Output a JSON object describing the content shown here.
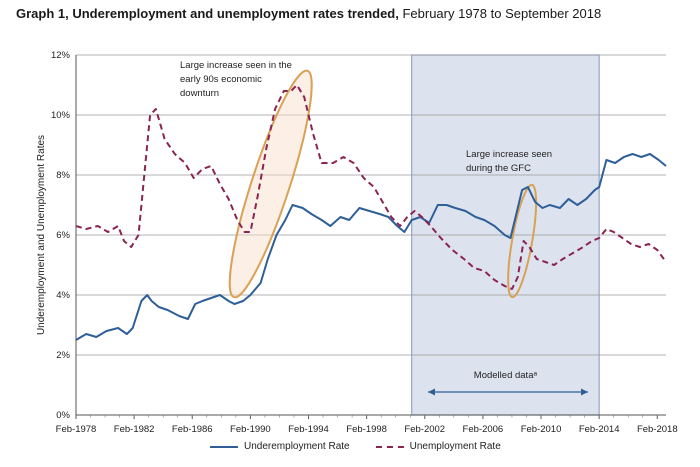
{
  "title_bold": "Graph 1, Underemployment and unemployment rates trended,",
  "title_rest": " February 1978 to September 2018",
  "chart_data": {
    "type": "line",
    "xlabel": "",
    "ylabel": "Underemployment and Unemployment Rates",
    "ylim": [
      0,
      12
    ],
    "yticks": [
      "0%",
      "2%",
      "4%",
      "6%",
      "8%",
      "10%",
      "12%"
    ],
    "xticks": [
      "Feb-1978",
      "Feb-1982",
      "Feb-1986",
      "Feb-1990",
      "Feb-1994",
      "Feb-1998",
      "Feb-2002",
      "Feb-2006",
      "Feb-2010",
      "Feb-2014",
      "Feb-2018"
    ],
    "xrange": [
      1978.1,
      2018.7
    ],
    "grid": "horizontal",
    "legend_position": "bottom",
    "shaded_region": {
      "from": 2001.2,
      "to": 2014.1,
      "color": "#dde3ee",
      "label": "Modelled dataᵃ"
    },
    "annotations": [
      {
        "text_lines": [
          "Large increase seen in the",
          "early 90s economic",
          "downturn"
        ]
      },
      {
        "text_lines": [
          "Large increase seen",
          "during the GFC"
        ]
      }
    ],
    "series": [
      {
        "name": "Underemployment Rate",
        "color": "#2e5f98",
        "style": "solid",
        "x": [
          1978.1,
          1978.8,
          1979.5,
          1980.2,
          1981.0,
          1981.6,
          1982.0,
          1982.6,
          1983.0,
          1983.3,
          1983.8,
          1984.4,
          1985.2,
          1985.8,
          1986.3,
          1986.8,
          1987.4,
          1988.0,
          1988.6,
          1989.0,
          1989.6,
          1990.1,
          1990.8,
          1991.3,
          1991.9,
          1992.5,
          1993.0,
          1993.7,
          1994.3,
          1995.0,
          1995.6,
          1996.3,
          1996.9,
          1997.6,
          1998.3,
          1999.0,
          1999.6,
          2000.2,
          2000.7,
          2001.2,
          2001.8,
          2002.4,
          2003.0,
          2003.6,
          2004.2,
          2004.9,
          2005.6,
          2006.2,
          2006.9,
          2007.6,
          2008.0,
          2008.4,
          2008.8,
          2009.2,
          2009.7,
          2010.2,
          2010.7,
          2011.4,
          2012.0,
          2012.6,
          2013.2,
          2013.8,
          2014.1,
          2014.6,
          2015.2,
          2015.8,
          2016.4,
          2017.0,
          2017.6,
          2018.2,
          2018.7
        ],
        "y": [
          2.5,
          2.7,
          2.6,
          2.8,
          2.9,
          2.7,
          2.9,
          3.8,
          4.0,
          3.8,
          3.6,
          3.5,
          3.3,
          3.2,
          3.7,
          3.8,
          3.9,
          4.0,
          3.8,
          3.7,
          3.8,
          4.0,
          4.4,
          5.2,
          6.0,
          6.5,
          7.0,
          6.9,
          6.7,
          6.5,
          6.3,
          6.6,
          6.5,
          6.9,
          6.8,
          6.7,
          6.6,
          6.3,
          6.1,
          6.5,
          6.6,
          6.4,
          7.0,
          7.0,
          6.9,
          6.8,
          6.6,
          6.5,
          6.3,
          6.0,
          5.9,
          6.7,
          7.5,
          7.6,
          7.1,
          6.9,
          7.0,
          6.9,
          7.2,
          7.0,
          7.2,
          7.5,
          7.6,
          8.5,
          8.4,
          8.6,
          8.7,
          8.6,
          8.7,
          8.5,
          8.3
        ]
      },
      {
        "name": "Unemployment Rate",
        "color": "#8b2452",
        "style": "dashed",
        "x": [
          1978.1,
          1978.8,
          1979.6,
          1980.3,
          1981.0,
          1981.4,
          1981.9,
          1982.4,
          1982.8,
          1983.2,
          1983.6,
          1984.2,
          1984.9,
          1985.6,
          1986.2,
          1986.8,
          1987.4,
          1988.0,
          1988.6,
          1989.2,
          1989.7,
          1990.1,
          1990.6,
          1991.2,
          1991.8,
          1992.4,
          1992.9,
          1993.3,
          1993.8,
          1994.4,
          1995.0,
          1995.8,
          1996.5,
          1997.2,
          1997.9,
          1998.6,
          1999.2,
          1999.8,
          2000.4,
          2000.9,
          2001.4,
          2001.9,
          2002.5,
          2003.2,
          2004.0,
          2004.8,
          2005.5,
          2006.2,
          2006.9,
          2007.6,
          2008.1,
          2008.5,
          2008.9,
          2009.3,
          2009.8,
          2010.4,
          2011.0,
          2011.6,
          2012.3,
          2013.0,
          2013.6,
          2014.1,
          2014.6,
          2015.1,
          2015.7,
          2016.3,
          2016.9,
          2017.5,
          2018.1,
          2018.7
        ],
        "y": [
          6.3,
          6.2,
          6.3,
          6.1,
          6.3,
          5.8,
          5.6,
          6.0,
          8.0,
          10.0,
          10.2,
          9.2,
          8.7,
          8.4,
          7.9,
          8.2,
          8.3,
          7.7,
          7.2,
          6.5,
          6.1,
          6.1,
          7.3,
          8.9,
          10.2,
          10.8,
          10.8,
          11.0,
          10.6,
          9.4,
          8.4,
          8.4,
          8.6,
          8.4,
          7.9,
          7.6,
          7.1,
          6.6,
          6.3,
          6.6,
          6.8,
          6.6,
          6.3,
          5.9,
          5.5,
          5.2,
          4.9,
          4.8,
          4.5,
          4.3,
          4.2,
          4.6,
          5.8,
          5.6,
          5.2,
          5.1,
          5.0,
          5.2,
          5.4,
          5.6,
          5.8,
          5.9,
          6.2,
          6.1,
          5.9,
          5.7,
          5.6,
          5.7,
          5.5,
          5.1
        ]
      }
    ]
  }
}
